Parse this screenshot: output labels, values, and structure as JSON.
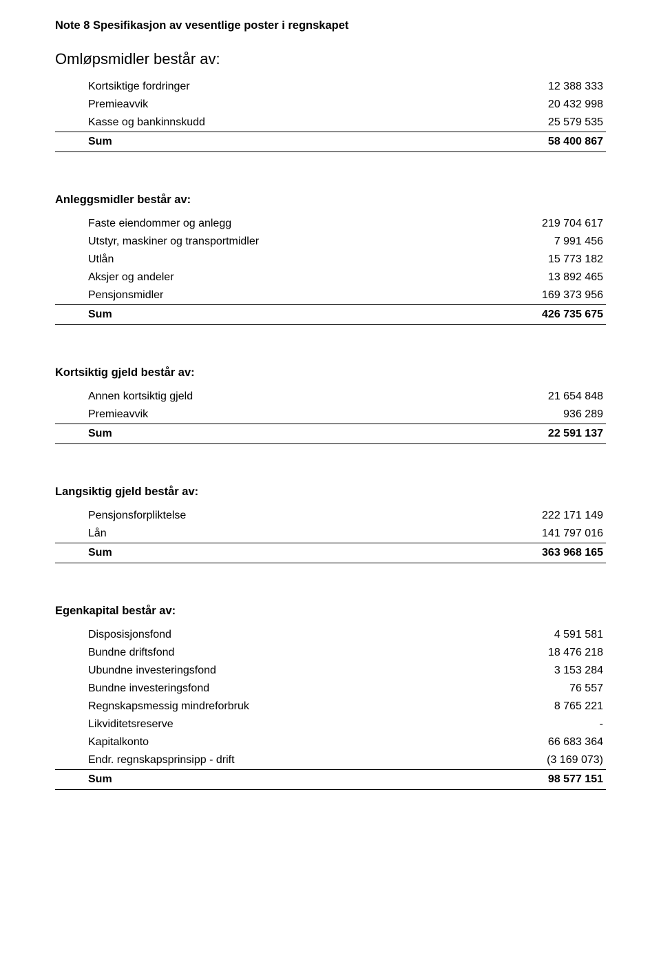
{
  "note_title": "Note 8 Spesifikasjon av vesentlige poster i regnskapet",
  "section1": {
    "heading": "Omløpsmidler består av:",
    "rows": [
      {
        "label": "Kortsiktige fordringer",
        "value": "12 388 333"
      },
      {
        "label": "Premieavvik",
        "value": "20 432 998"
      },
      {
        "label": "Kasse og bankinnskudd",
        "value": "25 579 535"
      }
    ],
    "sum_label": "Sum",
    "sum_value": "58 400 867"
  },
  "section2": {
    "heading": "Anleggsmidler består av:",
    "rows": [
      {
        "label": "Faste eiendommer og anlegg",
        "value": "219 704 617"
      },
      {
        "label": "Utstyr, maskiner og transportmidler",
        "value": "7 991 456"
      },
      {
        "label": "Utlån",
        "value": "15 773 182"
      },
      {
        "label": "Aksjer og andeler",
        "value": "13 892 465"
      },
      {
        "label": "Pensjonsmidler",
        "value": "169 373 956"
      }
    ],
    "sum_label": "Sum",
    "sum_value": "426 735 675"
  },
  "section3": {
    "heading": "Kortsiktig gjeld består av:",
    "rows": [
      {
        "label": "Annen kortsiktig gjeld",
        "value": "21 654 848"
      },
      {
        "label": "Premieavvik",
        "value": "936 289"
      }
    ],
    "sum_label": "Sum",
    "sum_value": "22 591 137"
  },
  "section4": {
    "heading": "Langsiktig gjeld består av:",
    "rows": [
      {
        "label": "Pensjonsforpliktelse",
        "value": "222 171 149"
      },
      {
        "label": "Lån",
        "value": "141 797 016"
      }
    ],
    "sum_label": "Sum",
    "sum_value": "363 968 165"
  },
  "section5": {
    "heading": "Egenkapital består av:",
    "rows": [
      {
        "label": "Disposisjonsfond",
        "value": "4 591 581"
      },
      {
        "label": "Bundne driftsfond",
        "value": "18 476 218"
      },
      {
        "label": "Ubundne investeringsfond",
        "value": "3 153 284"
      },
      {
        "label": "Bundne investeringsfond",
        "value": "76 557"
      },
      {
        "label": "Regnskapsmessig mindreforbruk",
        "value": "8 765 221"
      },
      {
        "label": "Likviditetsreserve",
        "value": "-"
      },
      {
        "label": "Kapitalkonto",
        "value": "66 683 364"
      },
      {
        "label": "Endr. regnskapsprinsipp - drift",
        "value": "(3 169 073)"
      }
    ],
    "sum_label": "Sum",
    "sum_value": "98 577 151"
  }
}
